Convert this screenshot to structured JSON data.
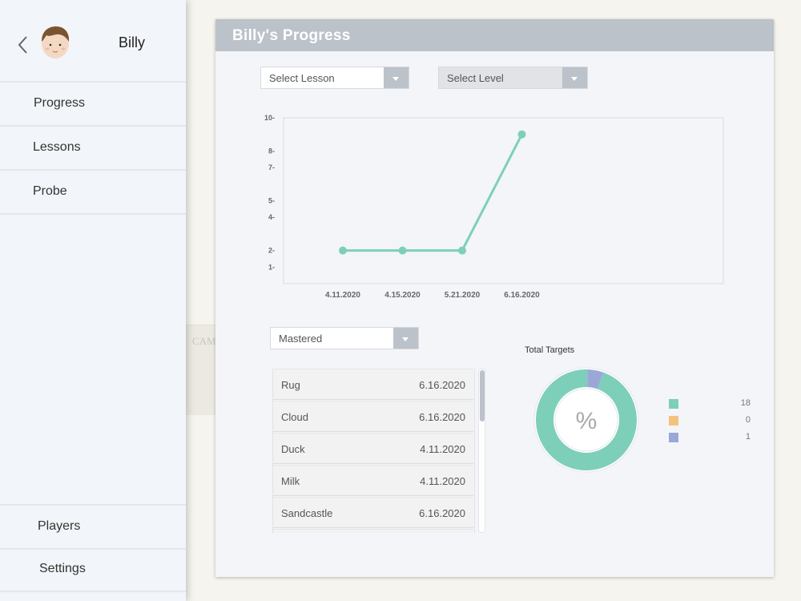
{
  "user": {
    "name": "Billy"
  },
  "nav": {
    "top": [
      {
        "label": "Progress"
      },
      {
        "label": "Lessons"
      },
      {
        "label": "Probe"
      }
    ],
    "bottom": [
      {
        "label": "Players"
      },
      {
        "label": "Settings"
      }
    ]
  },
  "background": {
    "partial_text": "CAMP"
  },
  "panel": {
    "title": "Billy's Progress"
  },
  "filters": {
    "lesson": {
      "value": "Select Lesson"
    },
    "level": {
      "value": "Select Level"
    }
  },
  "chart_data": {
    "type": "line",
    "title": "",
    "xlabel": "",
    "ylabel": "",
    "categories": [
      "4.11.2020",
      "4.15.2020",
      "5.21.2020",
      "6.16.2020"
    ],
    "values": [
      2,
      2,
      2,
      9
    ],
    "y_ticks": [
      1,
      2,
      4,
      5,
      7,
      8,
      10
    ],
    "ylim": [
      0,
      10
    ],
    "grid": false,
    "color": "#7ecfba"
  },
  "mastered": {
    "filter": {
      "value": "Mastered"
    },
    "items": [
      {
        "name": "Rug",
        "date": "6.16.2020"
      },
      {
        "name": "Cloud",
        "date": "6.16.2020"
      },
      {
        "name": "Duck",
        "date": "4.11.2020"
      },
      {
        "name": "Milk",
        "date": "4.11.2020"
      },
      {
        "name": "Sandcastle",
        "date": "6.16.2020"
      }
    ]
  },
  "targets": {
    "title": "Total Targets",
    "center_label": "%",
    "slices": [
      {
        "value": 18,
        "color": "#7ecfba"
      },
      {
        "value": 0,
        "color": "#f4c27f"
      },
      {
        "value": 1,
        "color": "#9aa8d8"
      }
    ]
  }
}
